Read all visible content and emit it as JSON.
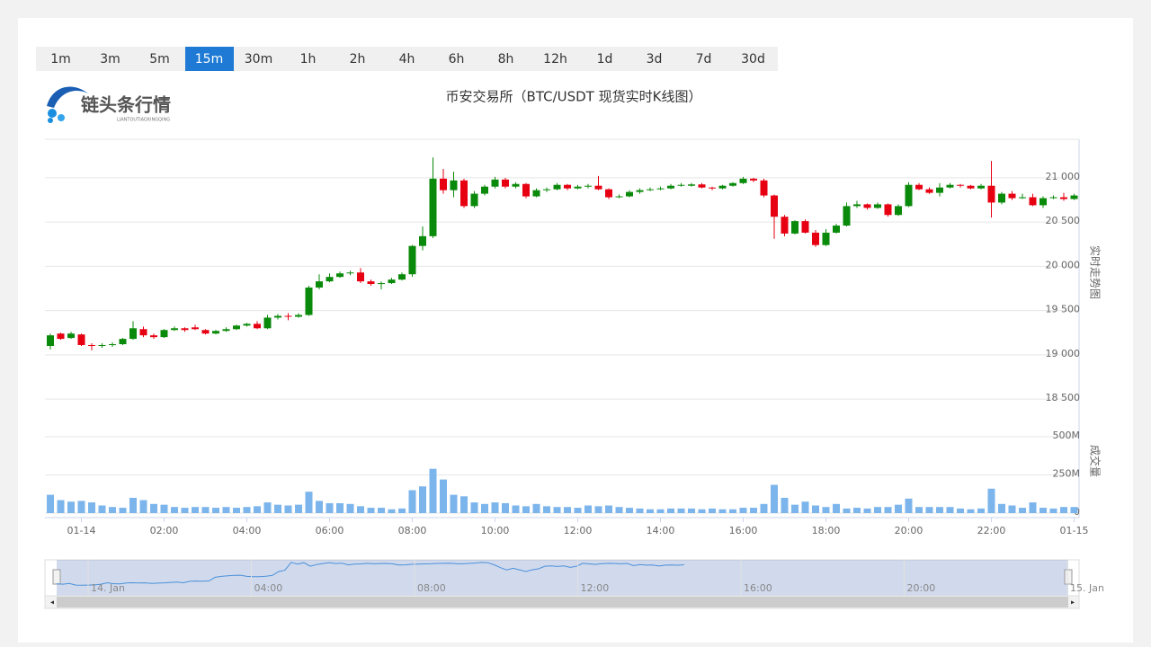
{
  "header": {
    "logo_text": "链头条行情",
    "logo_subtext": "LIANTOUTIAOXINGQING"
  },
  "timeframes": [
    "1m",
    "3m",
    "5m",
    "15m",
    "30m",
    "1h",
    "2h",
    "4h",
    "6h",
    "8h",
    "12h",
    "1d",
    "3d",
    "7d",
    "30d"
  ],
  "active_timeframe": "15m",
  "navigator": {
    "labels": [
      "14. Jan",
      "04:00",
      "08:00",
      "12:00",
      "16:00",
      "20:00",
      "15. Jan"
    ]
  },
  "chart_data": {
    "type": "candlestick",
    "title": "币安交易所（BTC/USDT 现货实时K线图）",
    "categories": [
      null,
      null,
      null,
      "01-14",
      null,
      null,
      null,
      null,
      null,
      null,
      null,
      "02:00",
      null,
      null,
      null,
      null,
      null,
      null,
      null,
      "04:00",
      null,
      null,
      null,
      null,
      null,
      null,
      null,
      "06:00",
      null,
      null,
      null,
      null,
      null,
      null,
      null,
      "08:00",
      null,
      null,
      null,
      null,
      null,
      null,
      null,
      "10:00",
      null,
      null,
      null,
      null,
      null,
      null,
      null,
      "12:00",
      null,
      null,
      null,
      null,
      null,
      null,
      null,
      "14:00",
      null,
      null,
      null,
      null,
      null,
      null,
      null,
      "16:00",
      null,
      null,
      null,
      null,
      null,
      null,
      null,
      "18:00",
      null,
      null,
      null,
      null,
      null,
      null,
      null,
      "20:00",
      null,
      null,
      null,
      null,
      null,
      null,
      null,
      "22:00",
      null,
      null,
      null,
      null,
      null,
      null,
      null,
      "01-15"
    ],
    "open": [
      19100,
      19240,
      19190,
      19230,
      19110,
      19100,
      19110,
      19120,
      19180,
      19290,
      19220,
      19200,
      19280,
      19300,
      19310,
      19280,
      19240,
      19270,
      19290,
      19330,
      19350,
      19300,
      19420,
      19440,
      19430,
      19450,
      19760,
      19830,
      19880,
      19920,
      19930,
      19830,
      19800,
      19810,
      19850,
      19910,
      20230,
      20340,
      20990,
      20860,
      20970,
      20680,
      20820,
      20900,
      20980,
      20900,
      20930,
      20790,
      20860,
      20870,
      20920,
      20880,
      20900,
      20910,
      20870,
      20780,
      20790,
      20840,
      20860,
      20870,
      20880,
      20910,
      20910,
      20925,
      20890,
      20880,
      20910,
      20940,
      20990,
      20970,
      20800,
      20560,
      20370,
      20510,
      20380,
      20240,
      20380,
      20460,
      20680,
      20700,
      20660,
      20700,
      20580,
      20680,
      20920,
      20870,
      20830,
      20890,
      20920,
      20910,
      20880,
      20910,
      20720,
      20820,
      20770,
      20780,
      20690,
      20770,
      20780,
      20760
    ],
    "high": [
      19240,
      19250,
      19260,
      19240,
      19130,
      19130,
      19140,
      19190,
      19380,
      19320,
      19240,
      19290,
      19320,
      19310,
      19340,
      19290,
      19280,
      19310,
      19340,
      19360,
      19380,
      19450,
      19460,
      19470,
      19470,
      19780,
      19910,
      19920,
      19940,
      19950,
      19980,
      19850,
      19830,
      19870,
      19930,
      20240,
      20450,
      21230,
      21100,
      21070,
      20990,
      20850,
      20920,
      21010,
      21000,
      20950,
      20940,
      20880,
      20890,
      20940,
      20930,
      20920,
      20930,
      21020,
      20880,
      20810,
      20860,
      20880,
      20890,
      20900,
      20930,
      20940,
      20940,
      20940,
      20900,
      20920,
      20950,
      21010,
      21000,
      20990,
      20810,
      20580,
      20520,
      20530,
      20410,
      20420,
      20480,
      20720,
      20740,
      20710,
      20720,
      20710,
      20700,
      20950,
      20940,
      20890,
      20940,
      20940,
      20930,
      20920,
      20930,
      21190,
      20840,
      20850,
      20820,
      20820,
      20790,
      20800,
      20830,
      20820
    ],
    "low": [
      19060,
      19170,
      19180,
      19100,
      19050,
      19080,
      19090,
      19110,
      19170,
      19200,
      19180,
      19190,
      19270,
      19260,
      19280,
      19230,
      19230,
      19260,
      19280,
      19320,
      19290,
      19290,
      19400,
      19390,
      19420,
      19440,
      19740,
      19820,
      19870,
      19900,
      19810,
      19780,
      19740,
      19800,
      19840,
      19880,
      20180,
      20320,
      20820,
      20780,
      20660,
      20660,
      20800,
      20880,
      20880,
      20880,
      20770,
      20780,
      20840,
      20860,
      20860,
      20870,
      20880,
      20860,
      20760,
      20770,
      20780,
      20820,
      20850,
      20860,
      20870,
      20900,
      20900,
      20880,
      20860,
      20870,
      20900,
      20930,
      20950,
      20780,
      20310,
      20340,
      20360,
      20370,
      20220,
      20230,
      20370,
      20450,
      20660,
      20640,
      20650,
      20560,
      20570,
      20670,
      20860,
      20820,
      20790,
      20880,
      20890,
      20870,
      20870,
      20550,
      20700,
      20750,
      20760,
      20680,
      20660,
      20760,
      20740,
      20750
    ],
    "close": [
      19220,
      19180,
      19240,
      19110,
      19100,
      19110,
      19120,
      19180,
      19300,
      19220,
      19200,
      19280,
      19300,
      19280,
      19290,
      19240,
      19270,
      19290,
      19330,
      19350,
      19300,
      19420,
      19440,
      19430,
      19450,
      19760,
      19830,
      19880,
      19920,
      19930,
      19830,
      19800,
      19810,
      19850,
      19910,
      20230,
      20340,
      20990,
      20860,
      20970,
      20680,
      20820,
      20900,
      20980,
      20900,
      20930,
      20790,
      20860,
      20870,
      20920,
      20880,
      20900,
      20910,
      20870,
      20780,
      20790,
      20840,
      20860,
      20870,
      20880,
      20910,
      20920,
      20925,
      20890,
      20880,
      20910,
      20940,
      20990,
      20970,
      20800,
      20560,
      20370,
      20510,
      20380,
      20240,
      20380,
      20460,
      20680,
      20700,
      20660,
      20700,
      20580,
      20680,
      20920,
      20870,
      20830,
      20890,
      20920,
      20910,
      20880,
      20910,
      20720,
      20820,
      20770,
      20780,
      20690,
      20770,
      20780,
      20760,
      20800
    ],
    "up_color": "#0a8a0a",
    "down_color": "#e60012",
    "ylim": [
      18440,
      21435
    ],
    "yticks": [
      {
        "value": 18500,
        "label": "18 500"
      },
      {
        "value": 19000,
        "label": "19 000"
      },
      {
        "value": 19500,
        "label": "19 500"
      },
      {
        "value": 20000,
        "label": "20 000"
      },
      {
        "value": 20500,
        "label": "20 500"
      },
      {
        "value": 21000,
        "label": "21 000"
      }
    ],
    "y_axis_title": "实时走势图",
    "volume": {
      "axis": "y2",
      "color": "#7cb5ec",
      "values": [
        120,
        85,
        75,
        80,
        70,
        50,
        40,
        35,
        100,
        85,
        60,
        55,
        40,
        35,
        40,
        40,
        35,
        40,
        35,
        40,
        45,
        70,
        55,
        50,
        55,
        140,
        80,
        65,
        65,
        60,
        45,
        35,
        35,
        25,
        30,
        150,
        175,
        290,
        220,
        120,
        110,
        70,
        60,
        70,
        65,
        50,
        45,
        60,
        45,
        40,
        40,
        35,
        50,
        45,
        50,
        40,
        35,
        30,
        25,
        25,
        30,
        30,
        30,
        25,
        30,
        25,
        25,
        35,
        35,
        60,
        185,
        100,
        55,
        75,
        50,
        40,
        60,
        30,
        35,
        30,
        40,
        40,
        55,
        95,
        40,
        40,
        40,
        40,
        30,
        25,
        30,
        160,
        60,
        50,
        35,
        70,
        35,
        30,
        40,
        40
      ]
    },
    "y2lim": [
      0,
      500
    ],
    "y2ticks": [
      0,
      {
        "value": 250,
        "label": "250M"
      },
      {
        "value": 500,
        "label": "500M"
      }
    ],
    "y2_axis_title": "成交量",
    "grid": true
  }
}
